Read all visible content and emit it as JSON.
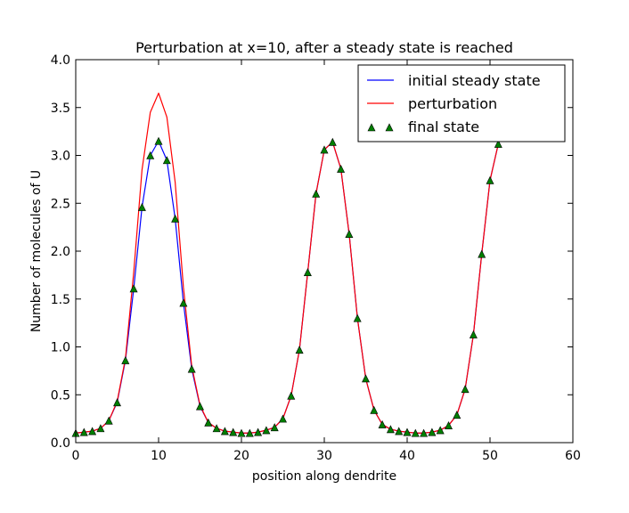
{
  "chart_data": {
    "type": "line",
    "title": "Perturbation at x=10, after a steady state is reached",
    "xlabel": "position along dendrite",
    "ylabel": "Number of molecules of U",
    "xlim": [
      0,
      60
    ],
    "ylim": [
      0.0,
      4.0
    ],
    "xticks": [
      "0",
      "10",
      "20",
      "30",
      "40",
      "50",
      "60"
    ],
    "yticks": [
      "0.0",
      "0.5",
      "1.0",
      "1.5",
      "2.0",
      "2.5",
      "3.0",
      "3.5",
      "4.0"
    ],
    "grid": false,
    "legend_position": "top-right",
    "x": [
      0,
      1,
      2,
      3,
      4,
      5,
      6,
      7,
      8,
      9,
      10,
      11,
      12,
      13,
      14,
      15,
      16,
      17,
      18,
      19,
      20,
      21,
      22,
      23,
      24,
      25,
      26,
      27,
      28,
      29,
      30,
      31,
      32,
      33,
      34,
      35,
      36,
      37,
      38,
      39,
      40,
      41,
      42,
      43,
      44,
      45,
      46,
      47,
      48,
      49,
      50,
      51
    ],
    "series": [
      {
        "name": "initial steady state",
        "style": "line",
        "color": "#0000ff",
        "values": [
          0.1,
          0.11,
          0.12,
          0.15,
          0.23,
          0.42,
          0.86,
          1.61,
          2.46,
          3.0,
          3.15,
          2.95,
          2.34,
          1.46,
          0.77,
          0.38,
          0.21,
          0.15,
          0.12,
          0.11,
          0.1,
          0.1,
          0.11,
          0.13,
          0.16,
          0.25,
          0.49,
          0.97,
          1.78,
          2.6,
          3.06,
          3.14,
          2.86,
          2.18,
          1.3,
          0.67,
          0.34,
          0.19,
          0.14,
          0.12,
          0.11,
          0.1,
          0.1,
          0.11,
          0.13,
          0.18,
          0.29,
          0.56,
          1.13,
          1.97,
          2.74,
          3.12
        ]
      },
      {
        "name": "perturbation",
        "style": "line",
        "color": "#ff0000",
        "values": [
          0.1,
          0.11,
          0.12,
          0.15,
          0.23,
          0.43,
          0.88,
          1.78,
          2.85,
          3.45,
          3.65,
          3.4,
          2.72,
          1.62,
          0.8,
          0.39,
          0.21,
          0.15,
          0.12,
          0.11,
          0.1,
          0.1,
          0.11,
          0.13,
          0.16,
          0.25,
          0.49,
          0.97,
          1.78,
          2.6,
          3.06,
          3.14,
          2.86,
          2.18,
          1.3,
          0.67,
          0.34,
          0.19,
          0.14,
          0.12,
          0.11,
          0.1,
          0.1,
          0.11,
          0.13,
          0.18,
          0.29,
          0.56,
          1.13,
          1.97,
          2.74,
          3.12
        ]
      },
      {
        "name": "final state",
        "style": "markers",
        "color": "#007f00",
        "values": [
          0.1,
          0.11,
          0.12,
          0.15,
          0.23,
          0.42,
          0.86,
          1.61,
          2.46,
          3.0,
          3.15,
          2.95,
          2.34,
          1.46,
          0.77,
          0.38,
          0.21,
          0.15,
          0.12,
          0.11,
          0.1,
          0.1,
          0.11,
          0.13,
          0.16,
          0.25,
          0.49,
          0.97,
          1.78,
          2.6,
          3.06,
          3.14,
          2.86,
          2.18,
          1.3,
          0.67,
          0.34,
          0.19,
          0.14,
          0.12,
          0.11,
          0.1,
          0.1,
          0.11,
          0.13,
          0.18,
          0.29,
          0.56,
          1.13,
          1.97,
          2.74,
          3.12
        ]
      }
    ]
  }
}
